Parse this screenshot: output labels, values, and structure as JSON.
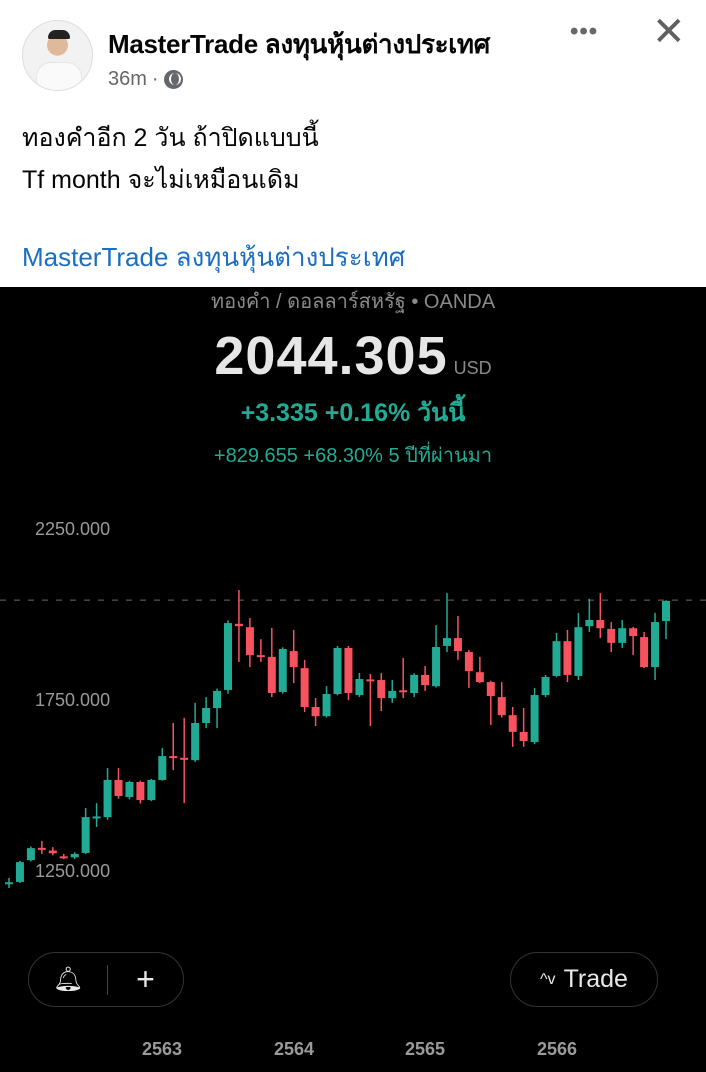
{
  "post": {
    "author": "MasterTrade ลงทุนหุ้นต่างประเทศ",
    "time": "36m",
    "separator": "·",
    "audience_icon": "globe-icon",
    "text_line1": "ทองคำอีก 2 วัน ถ้าปิดแบบนี้",
    "text_line2": "Tf month จะไม่เหมือนเดิม",
    "link_text": "MasterTrade ลงทุนหุ้นต่างประเทศ",
    "more_label": "•••",
    "close_label": "✕"
  },
  "quote": {
    "symbol": "ทองคำ / ดอลลาร์สหรัฐ • OANDA",
    "price": "2044.305",
    "currency": "USD",
    "change_today": "+3.335 +0.16% วันนี้",
    "change_5y": "+829.655 +68.30% 5 ปีที่ผ่านมา"
  },
  "buttons": {
    "plus": "+",
    "trade": "Trade",
    "trade_icon": "^v",
    "alert_icon": "bell-icon"
  },
  "colors": {
    "up": "#22ab94",
    "down": "#f7525f",
    "background": "#000000",
    "link": "#1b6ec2"
  },
  "chart_data": {
    "type": "candlestick",
    "y_tick_labels": [
      "2250.000",
      "1750.000",
      "1250.000"
    ],
    "y_ticks": [
      2250,
      1750,
      1250
    ],
    "x_tick_labels": [
      "2563",
      "2564",
      "2565",
      "2566"
    ],
    "last_price_line": 2044.305,
    "grid": false,
    "ohlc": [
      [
        1213,
        1230,
        1200,
        1217
      ],
      [
        1218,
        1280,
        1215,
        1276
      ],
      [
        1282,
        1322,
        1278,
        1317
      ],
      [
        1318,
        1338,
        1300,
        1314
      ],
      [
        1310,
        1320,
        1296,
        1302
      ],
      [
        1293,
        1300,
        1285,
        1289
      ],
      [
        1290,
        1305,
        1285,
        1300
      ],
      [
        1303,
        1435,
        1300,
        1408
      ],
      [
        1405,
        1449,
        1379,
        1410
      ],
      [
        1408,
        1552,
        1400,
        1517
      ],
      [
        1517,
        1552,
        1462,
        1470
      ],
      [
        1467,
        1515,
        1460,
        1511
      ],
      [
        1511,
        1515,
        1448,
        1458
      ],
      [
        1458,
        1520,
        1455,
        1517
      ],
      [
        1517,
        1611,
        1515,
        1587
      ],
      [
        1587,
        1684,
        1546,
        1582
      ],
      [
        1582,
        1699,
        1449,
        1576
      ],
      [
        1575,
        1743,
        1570,
        1684
      ],
      [
        1684,
        1760,
        1669,
        1728
      ],
      [
        1728,
        1785,
        1669,
        1778
      ],
      [
        1781,
        1985,
        1770,
        1977
      ],
      [
        1975,
        2074,
        1863,
        1968
      ],
      [
        1965,
        1992,
        1848,
        1883
      ],
      [
        1883,
        1930,
        1863,
        1878
      ],
      [
        1878,
        1963,
        1760,
        1772
      ],
      [
        1775,
        1906,
        1770,
        1901
      ],
      [
        1895,
        1957,
        1801,
        1848
      ],
      [
        1845,
        1869,
        1716,
        1731
      ],
      [
        1731,
        1757,
        1675,
        1704
      ],
      [
        1704,
        1792,
        1700,
        1769
      ],
      [
        1769,
        1910,
        1765,
        1904
      ],
      [
        1904,
        1910,
        1751,
        1772
      ],
      [
        1766,
        1831,
        1760,
        1813
      ],
      [
        1812,
        1828,
        1675,
        1808
      ],
      [
        1810,
        1831,
        1719,
        1757
      ],
      [
        1757,
        1810,
        1743,
        1778
      ],
      [
        1780,
        1875,
        1757,
        1776
      ],
      [
        1772,
        1830,
        1760,
        1825
      ],
      [
        1825,
        1851,
        1778,
        1795
      ],
      [
        1792,
        1971,
        1788,
        1907
      ],
      [
        1910,
        2065,
        1892,
        1933
      ],
      [
        1933,
        1998,
        1869,
        1895
      ],
      [
        1892,
        1898,
        1787,
        1836
      ],
      [
        1833,
        1878,
        1801,
        1804
      ],
      [
        1804,
        1808,
        1678,
        1763
      ],
      [
        1760,
        1804,
        1700,
        1707
      ],
      [
        1707,
        1731,
        1614,
        1658
      ],
      [
        1658,
        1728,
        1614,
        1631
      ],
      [
        1628,
        1787,
        1622,
        1766
      ],
      [
        1766,
        1825,
        1760,
        1819
      ],
      [
        1822,
        1948,
        1818,
        1924
      ],
      [
        1924,
        1957,
        1804,
        1825
      ],
      [
        1822,
        2007,
        1810,
        1965
      ],
      [
        1968,
        2048,
        1951,
        1986
      ],
      [
        1986,
        2065,
        1933,
        1962
      ],
      [
        1960,
        1980,
        1892,
        1919
      ],
      [
        1919,
        1986,
        1904,
        1962
      ],
      [
        1962,
        1966,
        1883,
        1939
      ],
      [
        1936,
        1951,
        1845,
        1848
      ],
      [
        1848,
        2007,
        1810,
        1980
      ],
      [
        1983,
        2044,
        1930,
        2042
      ]
    ]
  }
}
